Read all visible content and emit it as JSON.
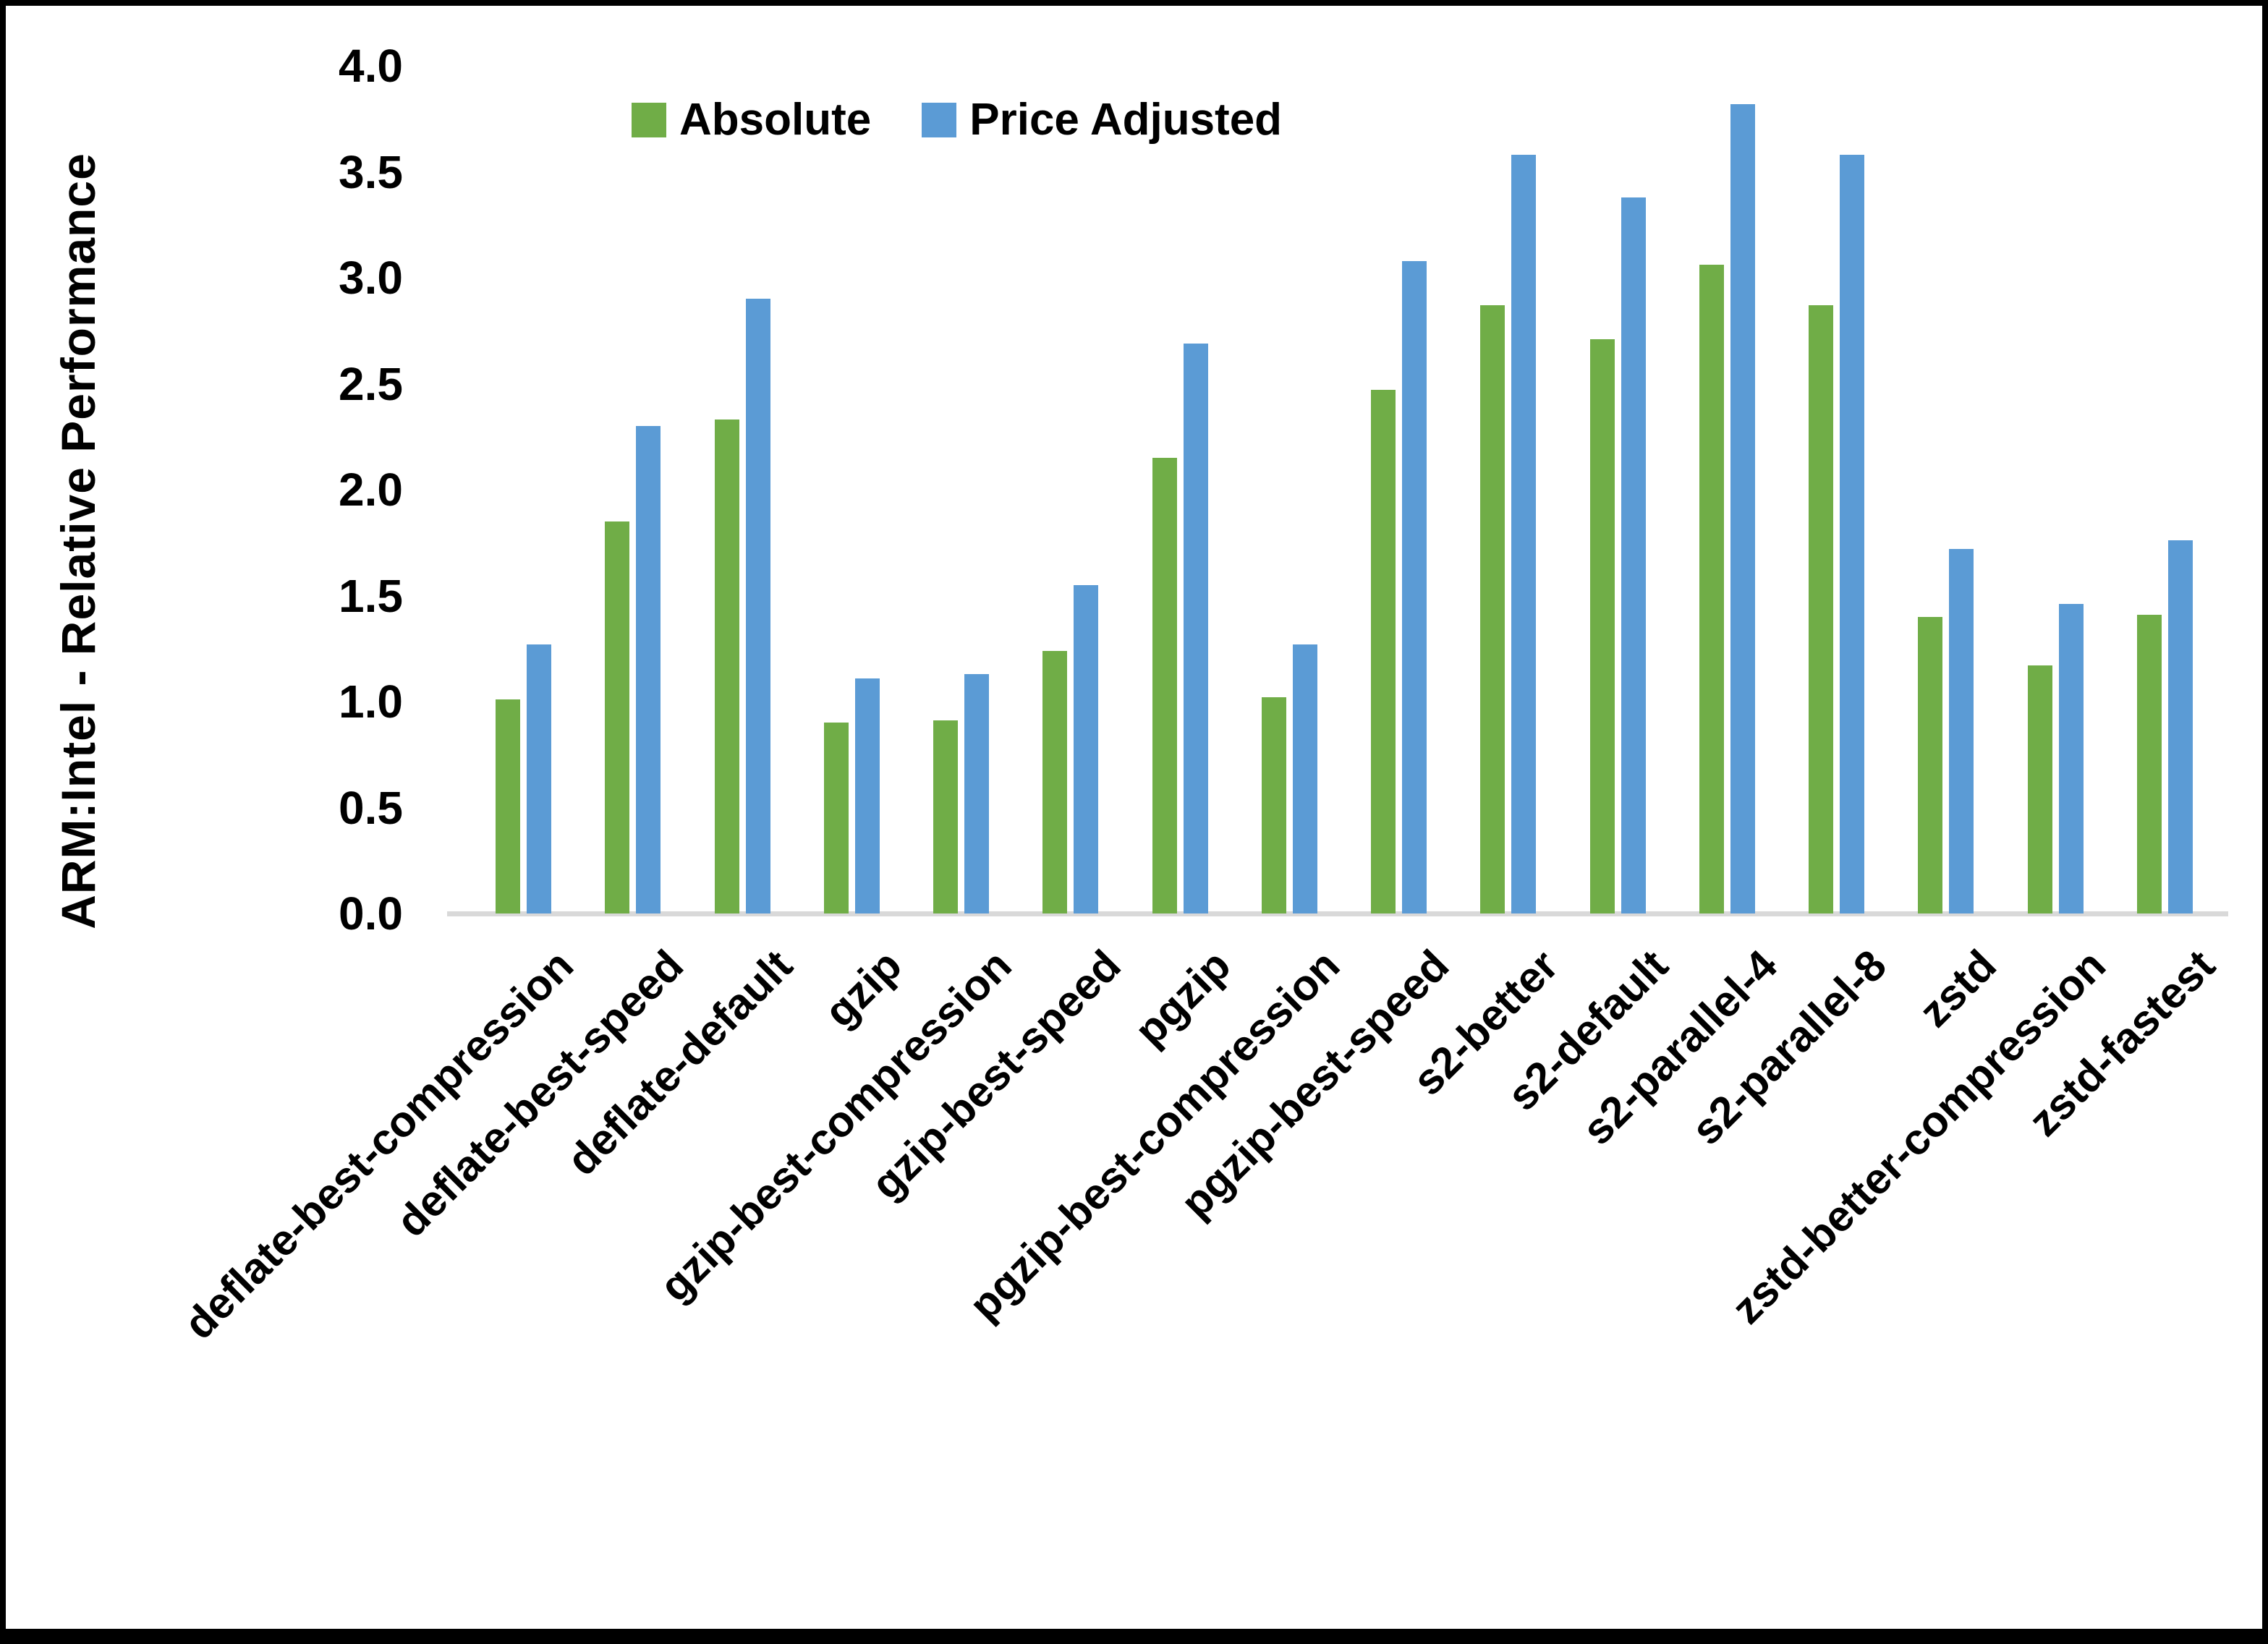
{
  "chart_data": {
    "type": "bar",
    "title": "",
    "xlabel": "",
    "ylabel": "ARM:Intel - Relative Performance",
    "ylim": [
      0.0,
      4.0
    ],
    "ytick_step": 0.5,
    "yticks": [
      "0.0",
      "0.5",
      "1.0",
      "1.5",
      "2.0",
      "2.5",
      "3.0",
      "3.5",
      "4.0"
    ],
    "grid": false,
    "legend_position": "top-center",
    "categories": [
      "deflate-best-compression",
      "deflate-best-speed",
      "deflate-default",
      "gzip",
      "gzip-best-compression",
      "gzip-best-speed",
      "pgzip",
      "pgzip-best-compression",
      "pgzip-best-speed",
      "s2-better",
      "s2-default",
      "s2-parallel-4",
      "s2-parallel-8",
      "zstd",
      "zstd-better-compression",
      "zstd-fastest"
    ],
    "series": [
      {
        "name": "Absolute",
        "color": "#70AD47",
        "values": [
          1.01,
          1.85,
          2.33,
          0.9,
          0.91,
          1.24,
          2.15,
          1.02,
          2.47,
          2.87,
          2.71,
          3.06,
          2.87,
          1.4,
          1.17,
          1.41
        ]
      },
      {
        "name": "Price Adjusted",
        "color": "#5B9BD5",
        "values": [
          1.27,
          2.3,
          2.9,
          1.11,
          1.13,
          1.55,
          2.69,
          1.27,
          3.08,
          3.58,
          3.38,
          3.82,
          3.58,
          1.72,
          1.46,
          1.76
        ]
      }
    ]
  },
  "colors": {
    "axis_line": "#D9D9D9",
    "text": "#000000",
    "frame": "#000000",
    "background": "#FFFFFF"
  }
}
